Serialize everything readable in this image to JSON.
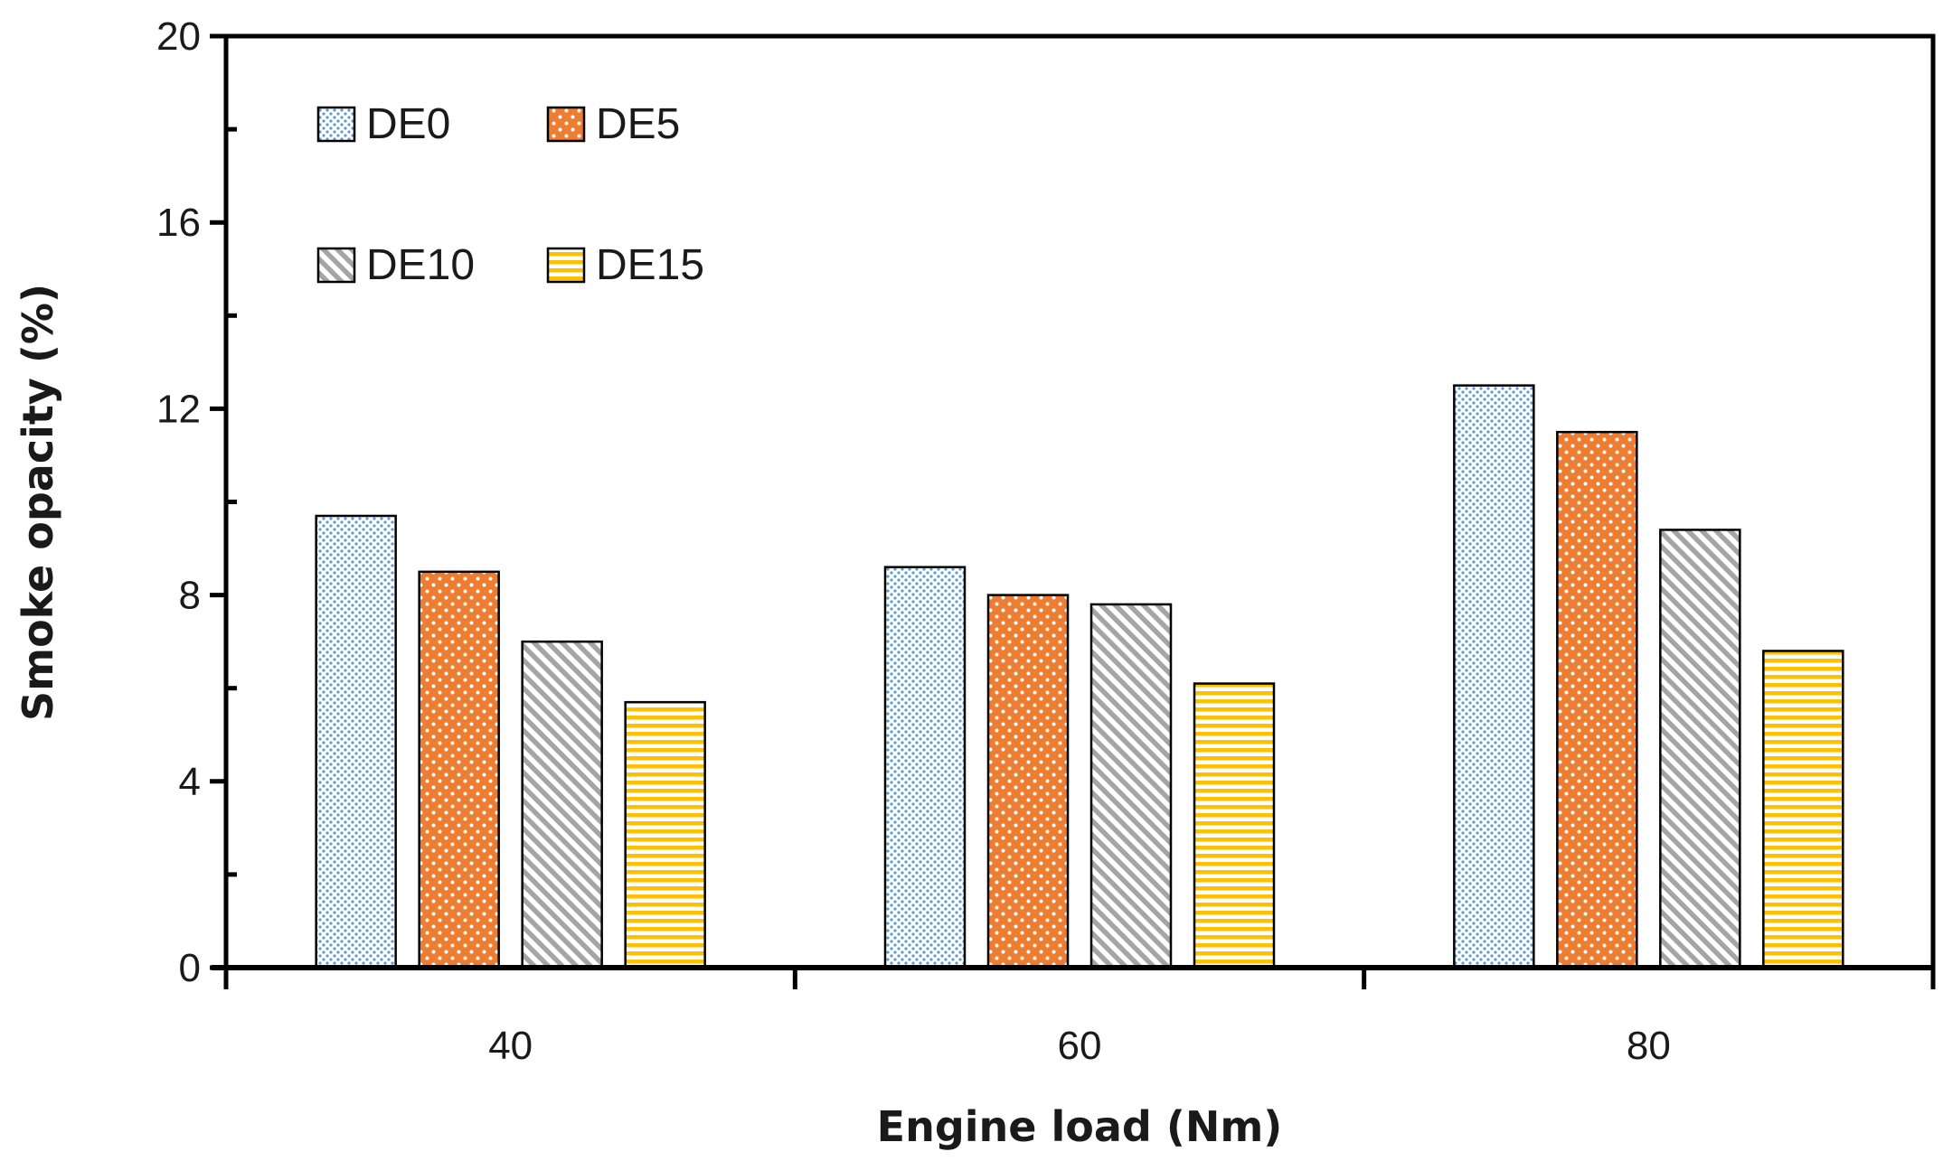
{
  "chart_data": {
    "type": "bar",
    "title": "",
    "xlabel": "Engine load (Nm)",
    "ylabel": "Smoke opacity (%)",
    "categories": [
      "40",
      "60",
      "80"
    ],
    "ylim": [
      0,
      20
    ],
    "yticks": [
      "0",
      "4",
      "8",
      "12",
      "16",
      "20"
    ],
    "grid": false,
    "legend_position": "top-left",
    "series": [
      {
        "name": "DE0",
        "values": [
          9.7,
          8.6,
          12.5
        ],
        "color": "#5b9bd5",
        "pattern": "fine-dots"
      },
      {
        "name": "DE5",
        "values": [
          8.5,
          8.0,
          11.5
        ],
        "color": "#ed7d31",
        "pattern": "dots"
      },
      {
        "name": "DE10",
        "values": [
          7.0,
          7.8,
          9.4
        ],
        "color": "#a5a5a5",
        "pattern": "diagonal-stripes"
      },
      {
        "name": "DE15",
        "values": [
          5.7,
          6.1,
          6.8
        ],
        "color": "#ffc000",
        "pattern": "horizontal-stripes"
      }
    ]
  }
}
